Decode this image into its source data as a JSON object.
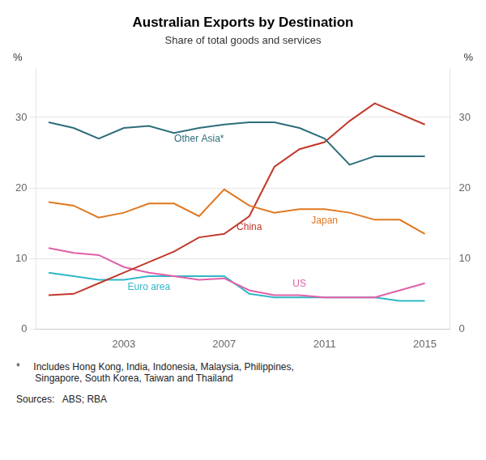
{
  "chart_data": {
    "type": "line",
    "title": "Australian Exports by Destination",
    "subtitle": "Share of total goods and services",
    "ylabel": "%",
    "y2label": "%",
    "annotations": [
      "*     Includes Hong Kong, India, Indonesia, Malaysia, Philippines,\n       Singapore, South Korea, Taiwan and Thailand",
      "Sources:   ABS; RBA"
    ],
    "x": [
      2000,
      2001,
      2002,
      2003,
      2004,
      2005,
      2006,
      2007,
      2008,
      2009,
      2010,
      2011,
      2012,
      2013,
      2014,
      2015
    ],
    "xlim": [
      1999.5,
      2016.0
    ],
    "xticks": [
      2003,
      2007,
      2011,
      2015
    ],
    "ylim": [
      0,
      37
    ],
    "yticks": [
      0,
      10,
      20,
      30
    ],
    "y2lim": [
      0,
      37
    ],
    "y2ticks": [
      0,
      10,
      20,
      30
    ],
    "grid": "y",
    "series": [
      {
        "name": "Other Asia*",
        "color": "#2D6E7A",
        "values": [
          29.3,
          28.5,
          27.0,
          28.5,
          28.8,
          27.8,
          28.5,
          29.0,
          29.3,
          29.3,
          28.5,
          27.0,
          23.3,
          24.5,
          24.5,
          24.5
        ]
      },
      {
        "name": "Japan",
        "color": "#E07820",
        "values": [
          18.0,
          17.5,
          15.8,
          16.5,
          17.8,
          17.8,
          16.0,
          19.8,
          17.5,
          16.5,
          17.0,
          17.0,
          16.5,
          15.5,
          15.5,
          13.5
        ]
      },
      {
        "name": "China",
        "color": "#C0392B",
        "values": [
          4.8,
          5.0,
          6.5,
          8.0,
          9.5,
          11.0,
          13.0,
          13.5,
          16.0,
          23.0,
          25.5,
          26.5,
          29.5,
          32.0,
          30.5,
          29.0
        ]
      },
      {
        "name": "US",
        "color": "#E060A8",
        "values": [
          11.5,
          10.8,
          10.5,
          8.8,
          8.0,
          7.5,
          7.0,
          7.2,
          5.5,
          4.8,
          4.8,
          4.5,
          4.5,
          4.5,
          5.5,
          6.5
        ]
      },
      {
        "name": "Euro area",
        "color": "#30B8C8",
        "values": [
          8.0,
          7.5,
          7.0,
          7.0,
          7.5,
          7.5,
          7.5,
          7.5,
          5.0,
          4.5,
          4.5,
          4.5,
          4.5,
          4.5,
          4.0,
          4.0
        ]
      }
    ]
  }
}
